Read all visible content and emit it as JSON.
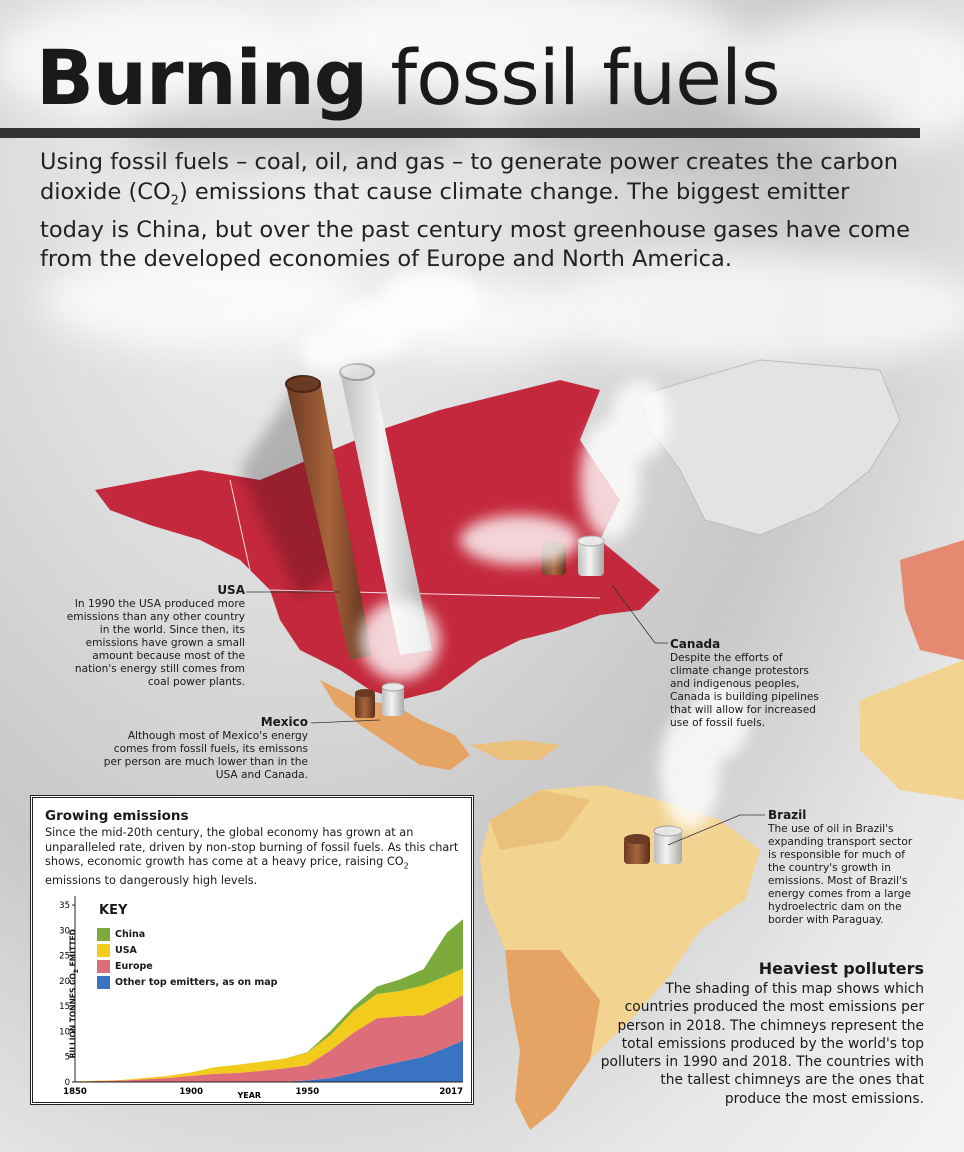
{
  "header": {
    "title_bold": "Burning",
    "title_light": "fossil fuels",
    "intro_a": "Using fossil fuels – coal, oil, and gas – to generate power creates the carbon dioxide (CO",
    "intro_sub": "2",
    "intro_b": ") emissions that cause climate change. The biggest emitter today is China, but over the past century most greenhouse gases have come from the developed economies of Europe and North America."
  },
  "callouts": {
    "usa": {
      "title": "USA",
      "text": "In 1990 the USA produced more emissions than any other country in the world. Since then, its emissions have grown a small amount because most of the nation's energy still comes from coal power plants."
    },
    "canada": {
      "title": "Canada",
      "text": "Despite the efforts of climate change protestors and indigenous peoples, Canada is building pipelines that will allow for increased use of fossil fuels."
    },
    "mexico": {
      "title": "Mexico",
      "text": "Although most of Mexico's energy comes from fossil fuels, its emissons per person are much lower than in the USA and Canada."
    },
    "brazil": {
      "title": "Brazil",
      "text": "The use of oil in Brazil's expanding transport sector is responsible for much of the country's growth in emissions. Most of Brazil's energy comes from a large hydroelectric dam on the border with Paraguay."
    }
  },
  "heaviest": {
    "title": "Heaviest polluters",
    "text": "The shading of this map shows which countries produced the most emissions per person in 2018. The chimneys represent the total emissions produced by the world's top polluters in 1990 and 2018. The countries with the tallest chimneys are the ones that produce the most emissions."
  },
  "chart_box": {
    "title": "Growing emissions",
    "desc_a": "Since the mid-20th century, the global economy has grown at an unparalleled rate, driven by non-stop burning of fossil fuels. As this chart shows, economic growth has come at a heavy price, raising CO",
    "desc_sub": "2",
    "desc_b": " emissions to dangerously high levels.",
    "key_title": "KEY",
    "ylabel_a": "BILLION TONNES CO",
    "ylabel_sub": "2",
    "ylabel_b": " EMITTED"
  },
  "colors": {
    "china": "#7cab3c",
    "usa": "#f2cc1c",
    "europe": "#dd6d78",
    "other": "#3b73c3",
    "map_red": "#c4283c",
    "map_orange": "#e5a463",
    "map_yellow": "#f2d390"
  },
  "chart_data": {
    "type": "area",
    "stacked": true,
    "x": [
      1850,
      1870,
      1890,
      1900,
      1910,
      1920,
      1930,
      1940,
      1950,
      1960,
      1970,
      1980,
      1990,
      2000,
      2010,
      2017
    ],
    "series": [
      {
        "name": "Other top emitters, as on map",
        "values": [
          0,
          0,
          0,
          0,
          0,
          0,
          0,
          0.1,
          0.3,
          0.8,
          1.8,
          3.0,
          4.0,
          5.0,
          6.8,
          8.2
        ]
      },
      {
        "name": "Europe",
        "values": [
          0.1,
          0.3,
          0.8,
          1.2,
          1.6,
          1.8,
          2.2,
          2.6,
          3.0,
          5.5,
          8.0,
          9.6,
          9.0,
          8.2,
          8.6,
          9.0
        ]
      },
      {
        "name": "USA",
        "values": [
          0.05,
          0.1,
          0.4,
          0.7,
          1.3,
          1.6,
          1.8,
          1.9,
          2.5,
          3.0,
          4.3,
          4.8,
          5.0,
          5.9,
          5.6,
          5.2
        ]
      },
      {
        "name": "China",
        "values": [
          0,
          0,
          0,
          0,
          0,
          0,
          0,
          0,
          0.1,
          0.8,
          0.9,
          1.5,
          2.3,
          3.2,
          8.5,
          9.8
        ]
      }
    ],
    "xlabel": "YEAR",
    "ylabel": "BILLION TONNES CO2 EMITTED",
    "xticks": [
      1850,
      1900,
      1950,
      2017
    ],
    "yticks": [
      0,
      5,
      10,
      15,
      20,
      25,
      30,
      35
    ],
    "ylim": [
      0,
      36
    ],
    "xlim": [
      1850,
      2017
    ],
    "legend": "top-left",
    "grid": false
  }
}
